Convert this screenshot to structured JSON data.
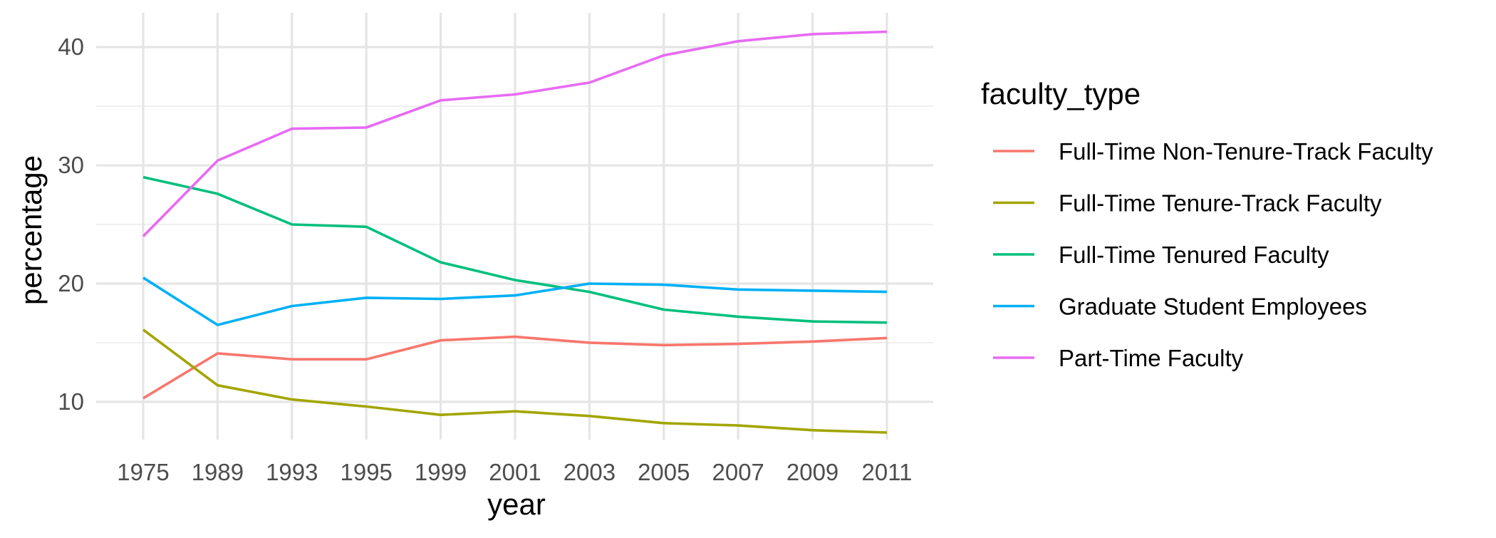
{
  "chart_data": {
    "type": "line",
    "xlabel": "year",
    "ylabel": "percentage",
    "x": [
      "1975",
      "1989",
      "1993",
      "1995",
      "1999",
      "2001",
      "2003",
      "2005",
      "2007",
      "2009",
      "2011"
    ],
    "y_ticks": [
      10,
      20,
      30,
      40
    ],
    "ylim": [
      6.8,
      42.9
    ],
    "grid": true,
    "legend": {
      "title": "faculty_type",
      "placement": "right"
    },
    "series": [
      {
        "name": "Full-Time Non-Tenure-Track Faculty",
        "color": "#F8766D",
        "values": [
          10.3,
          14.1,
          13.6,
          13.6,
          15.2,
          15.5,
          15.0,
          14.8,
          14.9,
          15.1,
          15.4
        ]
      },
      {
        "name": "Full-Time Tenure-Track Faculty",
        "color": "#A3A500",
        "values": [
          16.1,
          11.4,
          10.2,
          9.6,
          8.9,
          9.2,
          8.8,
          8.2,
          8.0,
          7.6,
          7.4
        ]
      },
      {
        "name": "Full-Time Tenured Faculty",
        "color": "#00BF7D",
        "values": [
          29.0,
          27.6,
          25.0,
          24.8,
          21.8,
          20.3,
          19.3,
          17.8,
          17.2,
          16.8,
          16.7
        ]
      },
      {
        "name": "Graduate Student Employees",
        "color": "#00B0F6",
        "values": [
          20.5,
          16.5,
          18.1,
          18.8,
          18.7,
          19.0,
          20.0,
          19.9,
          19.5,
          19.4,
          19.3
        ]
      },
      {
        "name": "Part-Time Faculty",
        "color": "#E76BF3",
        "values": [
          24.0,
          30.4,
          33.1,
          33.2,
          35.5,
          36.0,
          37.0,
          39.3,
          40.5,
          41.1,
          41.3
        ]
      }
    ]
  }
}
